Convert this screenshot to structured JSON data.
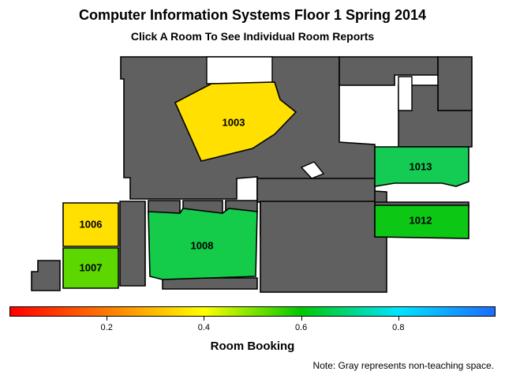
{
  "title": "Computer Information Systems Floor 1 Spring 2014",
  "subtitle": "Click A Room To See Individual Room Reports",
  "rooms": [
    {
      "id": "1003",
      "label": "1003",
      "booking": 0.45,
      "color": "#ffe000"
    },
    {
      "id": "1006",
      "label": "1006",
      "booking": 0.44,
      "color": "#ffe000"
    },
    {
      "id": "1007",
      "label": "1007",
      "booking": 0.63,
      "color": "#5cd800"
    },
    {
      "id": "1008",
      "label": "1008",
      "booking": 0.72,
      "color": "#14cc4a"
    },
    {
      "id": "1012",
      "label": "1012",
      "booking": 0.67,
      "color": "#0cc814"
    },
    {
      "id": "1013",
      "label": "1013",
      "booking": 0.73,
      "color": "#14cc54"
    }
  ],
  "legend": {
    "title": "Room Booking",
    "min": 0,
    "max": 1,
    "ticks": [
      "0.2",
      "0.4",
      "0.6",
      "0.8"
    ],
    "colors": [
      "#ff0000",
      "#ff7a00",
      "#ffff00",
      "#00c800",
      "#00e5ff",
      "#1c6cff"
    ]
  },
  "non_teaching_color": "#606060",
  "note": "Note: Gray represents non-teaching space."
}
